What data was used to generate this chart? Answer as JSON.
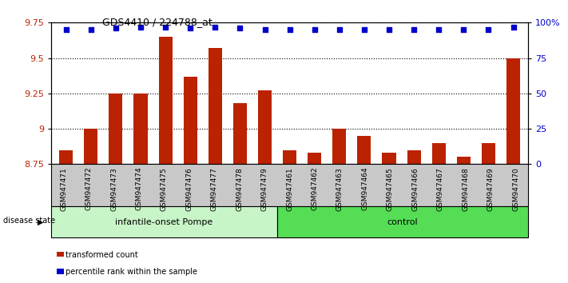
{
  "title": "GDS4410 / 224788_at",
  "samples": [
    "GSM947471",
    "GSM947472",
    "GSM947473",
    "GSM947474",
    "GSM947475",
    "GSM947476",
    "GSM947477",
    "GSM947478",
    "GSM947479",
    "GSM947461",
    "GSM947462",
    "GSM947463",
    "GSM947464",
    "GSM947465",
    "GSM947466",
    "GSM947467",
    "GSM947468",
    "GSM947469",
    "GSM947470"
  ],
  "red_values": [
    8.85,
    9.0,
    9.25,
    9.25,
    9.65,
    9.37,
    9.57,
    9.18,
    9.27,
    8.85,
    8.83,
    9.0,
    8.95,
    8.83,
    8.85,
    8.9,
    8.8,
    8.9,
    9.5
  ],
  "blue_values": [
    95,
    95,
    96,
    97,
    97,
    96,
    97,
    96,
    95,
    95,
    95,
    95,
    95,
    95,
    95,
    95,
    95,
    95,
    97
  ],
  "group1_count": 9,
  "group1_label": "infantile-onset Pompe",
  "group2_label": "control",
  "bar_color": "#bb2200",
  "dot_color": "#0000cc",
  "ylim_left": [
    8.75,
    9.75
  ],
  "ylim_right": [
    0,
    100
  ],
  "yticks_left": [
    8.75,
    9.0,
    9.25,
    9.5,
    9.75
  ],
  "ytick_labels_left": [
    "8.75",
    "9",
    "9.25",
    "9.5",
    "9.75"
  ],
  "yticks_right": [
    0,
    25,
    50,
    75,
    100
  ],
  "ytick_labels_right": [
    "0",
    "25",
    "50",
    "75",
    "100%"
  ],
  "legend_label_red": "transformed count",
  "legend_label_blue": "percentile rank within the sample",
  "disease_state_label": "disease state",
  "background_color": "#ffffff",
  "tick_area_color": "#c8c8c8",
  "group1_color": "#c8f5c8",
  "group2_color": "#55dd55"
}
